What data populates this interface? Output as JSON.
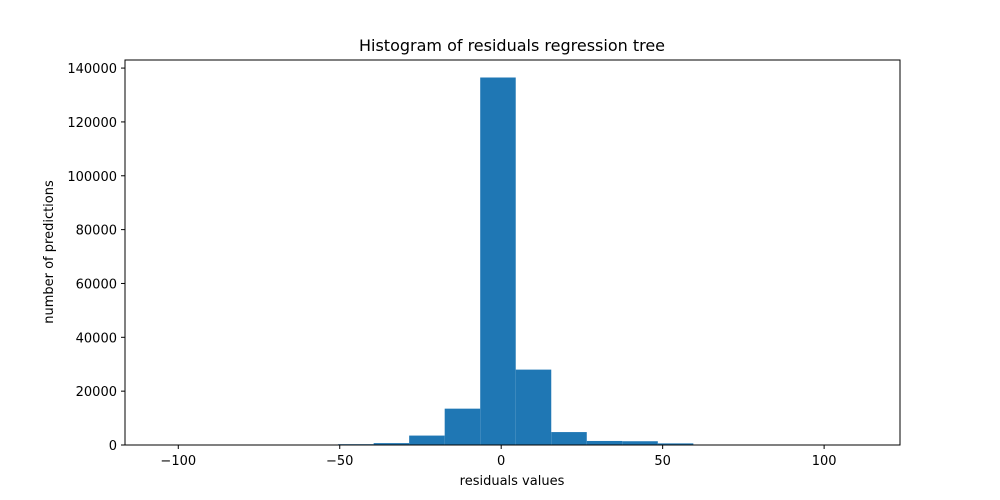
{
  "chart_data": {
    "type": "bar",
    "title": "Histogram of residuals regression tree",
    "xlabel": "residuals values",
    "ylabel": "number of predictions",
    "xlim": [
      -116.5,
      123.5
    ],
    "ylim": [
      0,
      143000
    ],
    "xticks": [
      -100,
      -50,
      0,
      50,
      100
    ],
    "xtick_labels": [
      "−100",
      "−50",
      "0",
      "50",
      "100"
    ],
    "yticks": [
      0,
      20000,
      40000,
      60000,
      80000,
      100000,
      120000,
      140000
    ],
    "ytick_labels": [
      "0",
      "20000",
      "40000",
      "60000",
      "80000",
      "100000",
      "120000",
      "140000"
    ],
    "grid": false,
    "bar_color": "#1f77b4",
    "bin_edges": [
      -105.5,
      -94.5,
      -83.5,
      -72.5,
      -61.5,
      -50.5,
      -39.5,
      -28.5,
      -17.5,
      -6.5,
      4.5,
      15.5,
      26.5,
      37.5,
      48.5,
      59.5,
      70.5,
      81.5,
      92.5,
      103.5,
      114.5
    ],
    "values": [
      0,
      0,
      0,
      0,
      0,
      300,
      700,
      3500,
      13500,
      136500,
      28000,
      4800,
      1500,
      1400,
      600,
      0,
      0,
      0,
      0,
      50
    ]
  }
}
